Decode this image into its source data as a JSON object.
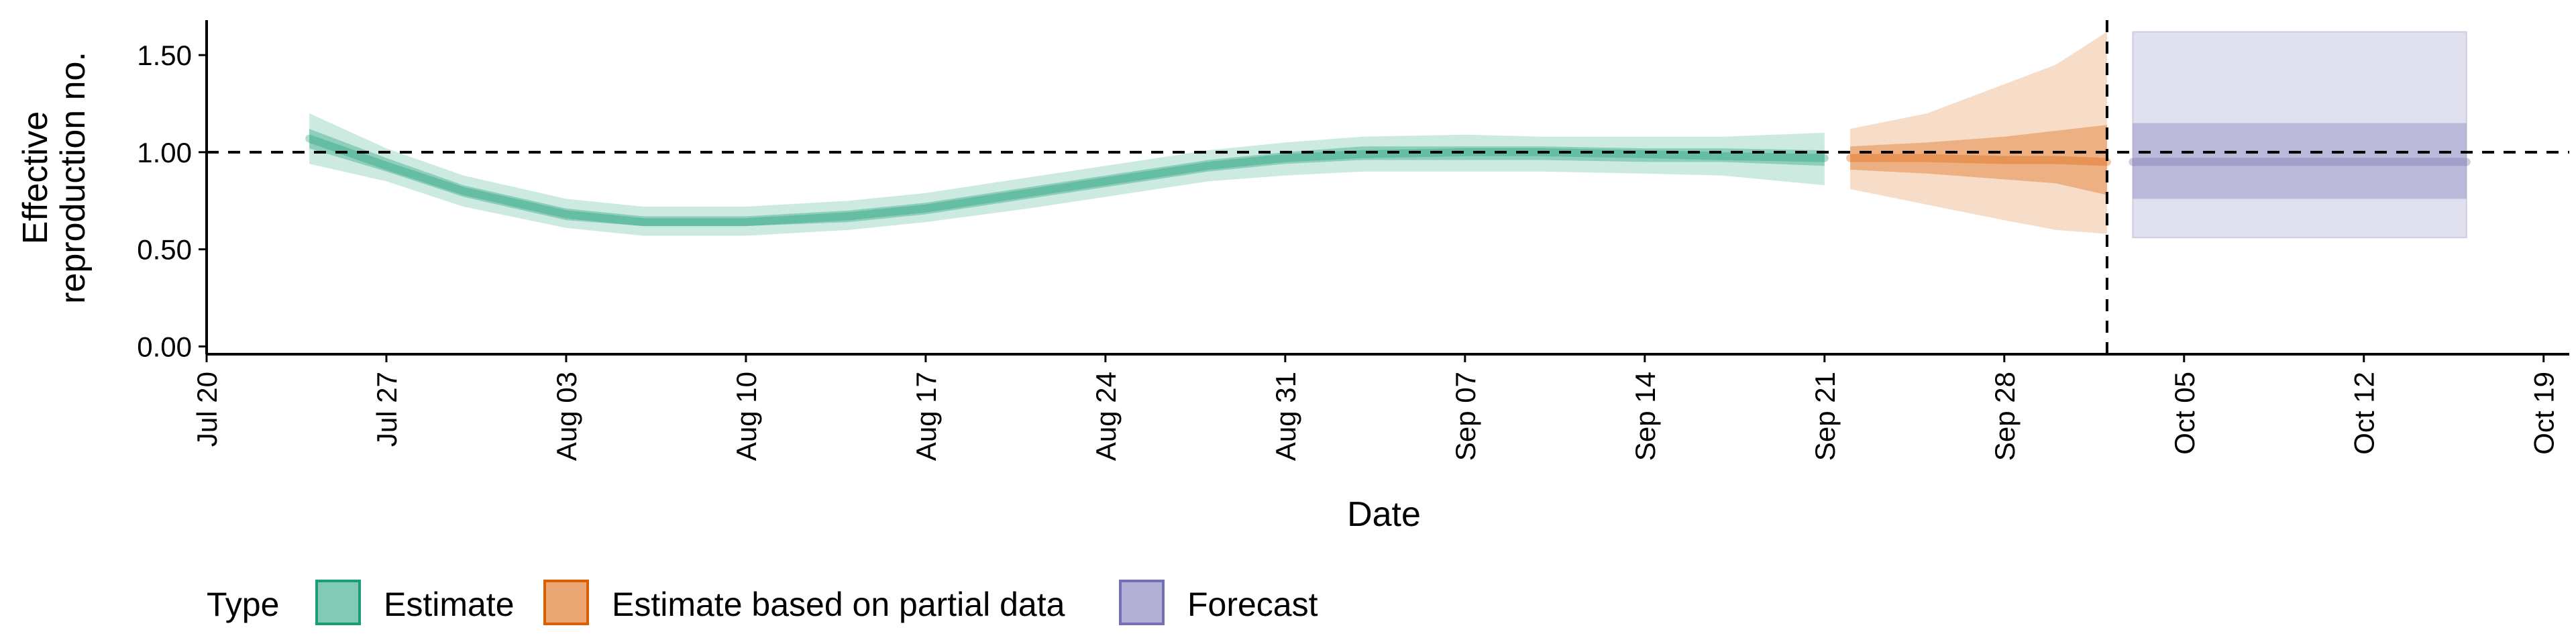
{
  "chart_data": {
    "type": "area",
    "title": "",
    "xlabel": "Date",
    "ylabel_lines": [
      "Effective",
      "reproduction no."
    ],
    "xlim": [
      "2020-07-20",
      "2020-10-20"
    ],
    "ylim": [
      -0.04,
      1.68
    ],
    "x_ticks": [
      {
        "date": "2020-07-20",
        "label": "Jul 20"
      },
      {
        "date": "2020-07-27",
        "label": "Jul 27"
      },
      {
        "date": "2020-08-03",
        "label": "Aug 03"
      },
      {
        "date": "2020-08-10",
        "label": "Aug 10"
      },
      {
        "date": "2020-08-17",
        "label": "Aug 17"
      },
      {
        "date": "2020-08-24",
        "label": "Aug 24"
      },
      {
        "date": "2020-08-31",
        "label": "Aug 31"
      },
      {
        "date": "2020-09-07",
        "label": "Sep 07"
      },
      {
        "date": "2020-09-14",
        "label": "Sep 14"
      },
      {
        "date": "2020-09-21",
        "label": "Sep 21"
      },
      {
        "date": "2020-09-28",
        "label": "Sep 28"
      },
      {
        "date": "2020-10-05",
        "label": "Oct 05"
      },
      {
        "date": "2020-10-12",
        "label": "Oct 12"
      },
      {
        "date": "2020-10-19",
        "label": "Oct 19"
      }
    ],
    "y_ticks": [
      {
        "value": 0.0,
        "label": "0.00"
      },
      {
        "value": 0.5,
        "label": "0.50"
      },
      {
        "value": 1.0,
        "label": "1.00"
      },
      {
        "value": 1.5,
        "label": "1.50"
      }
    ],
    "reference_line_y": 1.0,
    "reference_line_x": "2020-10-02",
    "legend": {
      "title": "Type",
      "position": "bottom",
      "entries": [
        "Estimate",
        "Estimate based on partial data",
        "Forecast"
      ]
    },
    "series": [
      {
        "name": "Estimate",
        "fill": "#1b9e77",
        "stroke": "#1b9e77",
        "points": [
          {
            "date": "2020-07-24",
            "median": 1.07,
            "lower50": 1.02,
            "upper50": 1.12,
            "lower90": 0.94,
            "upper90": 1.2
          },
          {
            "date": "2020-07-27",
            "median": 0.93,
            "lower50": 0.9,
            "upper50": 0.97,
            "lower90": 0.85,
            "upper90": 1.02
          },
          {
            "date": "2020-07-30",
            "median": 0.8,
            "lower50": 0.77,
            "upper50": 0.83,
            "lower90": 0.72,
            "upper90": 0.88
          },
          {
            "date": "2020-08-03",
            "median": 0.68,
            "lower50": 0.65,
            "upper50": 0.71,
            "lower90": 0.61,
            "upper90": 0.76
          },
          {
            "date": "2020-08-06",
            "median": 0.64,
            "lower50": 0.62,
            "upper50": 0.67,
            "lower90": 0.57,
            "upper90": 0.72
          },
          {
            "date": "2020-08-10",
            "median": 0.64,
            "lower50": 0.62,
            "upper50": 0.67,
            "lower90": 0.57,
            "upper90": 0.72
          },
          {
            "date": "2020-08-14",
            "median": 0.67,
            "lower50": 0.64,
            "upper50": 0.7,
            "lower90": 0.6,
            "upper90": 0.75
          },
          {
            "date": "2020-08-17",
            "median": 0.71,
            "lower50": 0.68,
            "upper50": 0.74,
            "lower90": 0.64,
            "upper90": 0.79
          },
          {
            "date": "2020-08-21",
            "median": 0.79,
            "lower50": 0.76,
            "upper50": 0.82,
            "lower90": 0.71,
            "upper90": 0.87
          },
          {
            "date": "2020-08-24",
            "median": 0.85,
            "lower50": 0.82,
            "upper50": 0.88,
            "lower90": 0.77,
            "upper90": 0.93
          },
          {
            "date": "2020-08-28",
            "median": 0.93,
            "lower50": 0.9,
            "upper50": 0.96,
            "lower90": 0.85,
            "upper90": 1.01
          },
          {
            "date": "2020-08-31",
            "median": 0.97,
            "lower50": 0.94,
            "upper50": 1.0,
            "lower90": 0.88,
            "upper90": 1.05
          },
          {
            "date": "2020-09-03",
            "median": 0.99,
            "lower50": 0.96,
            "upper50": 1.03,
            "lower90": 0.9,
            "upper90": 1.08
          },
          {
            "date": "2020-09-07",
            "median": 1.0,
            "lower50": 0.96,
            "upper50": 1.03,
            "lower90": 0.9,
            "upper90": 1.09
          },
          {
            "date": "2020-09-10",
            "median": 1.0,
            "lower50": 0.96,
            "upper50": 1.03,
            "lower90": 0.9,
            "upper90": 1.08
          },
          {
            "date": "2020-09-14",
            "median": 0.99,
            "lower50": 0.95,
            "upper50": 1.02,
            "lower90": 0.89,
            "upper90": 1.08
          },
          {
            "date": "2020-09-17",
            "median": 0.98,
            "lower50": 0.95,
            "upper50": 1.02,
            "lower90": 0.88,
            "upper90": 1.08
          },
          {
            "date": "2020-09-21",
            "median": 0.97,
            "lower50": 0.93,
            "upper50": 1.01,
            "lower90": 0.83,
            "upper90": 1.1
          }
        ]
      },
      {
        "name": "Estimate based on partial data",
        "fill": "#d95f02",
        "stroke": "#d95f02",
        "points": [
          {
            "date": "2020-09-22",
            "median": 0.97,
            "lower50": 0.91,
            "upper50": 1.03,
            "lower90": 0.81,
            "upper90": 1.12
          },
          {
            "date": "2020-09-25",
            "median": 0.97,
            "lower50": 0.89,
            "upper50": 1.05,
            "lower90": 0.73,
            "upper90": 1.2
          },
          {
            "date": "2020-09-28",
            "median": 0.96,
            "lower50": 0.86,
            "upper50": 1.08,
            "lower90": 0.65,
            "upper90": 1.35
          },
          {
            "date": "2020-09-30",
            "median": 0.96,
            "lower50": 0.84,
            "upper50": 1.11,
            "lower90": 0.6,
            "upper90": 1.45
          },
          {
            "date": "2020-10-02",
            "median": 0.95,
            "lower50": 0.78,
            "upper50": 1.14,
            "lower90": 0.58,
            "upper90": 1.62
          }
        ]
      },
      {
        "name": "Forecast",
        "fill": "#7570b3",
        "stroke": "#7570b3",
        "points": [
          {
            "date": "2020-10-03",
            "median": 0.95,
            "lower50": 0.76,
            "upper50": 1.15,
            "lower90": 0.56,
            "upper90": 1.62
          },
          {
            "date": "2020-10-16",
            "median": 0.95,
            "lower50": 0.76,
            "upper50": 1.15,
            "lower90": 0.56,
            "upper90": 1.62
          }
        ]
      }
    ]
  }
}
